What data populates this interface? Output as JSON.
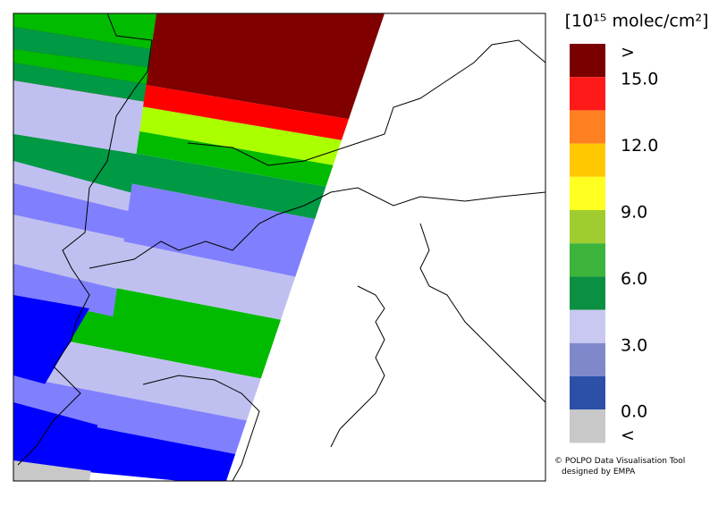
{
  "legend": {
    "title": "[10¹⁵ molec/cm²]",
    "colors": [
      "#7a0000",
      "#ff1a1a",
      "#ff8020",
      "#ffc800",
      "#ffff20",
      "#a0cc30",
      "#3cb43c",
      "#0a9040",
      "#c8c8f0",
      "#8088cc",
      "#2c50a8",
      "#c8c8c8"
    ],
    "labels": [
      ">",
      "15.0",
      "12.0",
      "9.0",
      "6.0",
      "3.0",
      "0.0",
      "<"
    ]
  },
  "credit": {
    "line1": "© POLPO Data Visualisation Tool",
    "line2": "designed by EMPA"
  }
}
